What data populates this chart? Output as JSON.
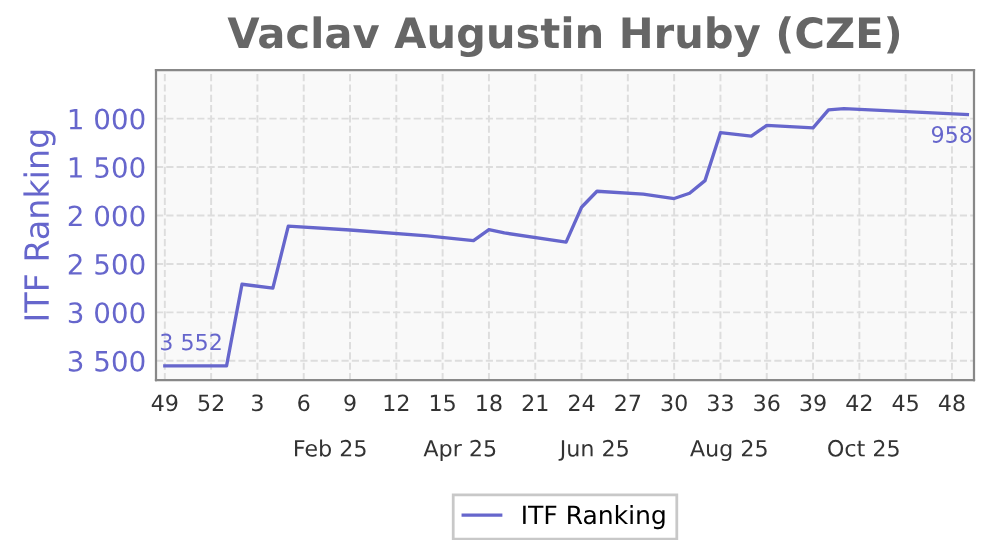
{
  "chart_data": {
    "type": "line",
    "title": "Vaclav Augustin Hruby (CZE)",
    "ylabel": "ITF Ranking",
    "x": [
      "2024-12-02",
      "2024-12-30",
      "2025-01-06",
      "2025-01-20",
      "2025-01-27",
      "2025-02-24",
      "2025-03-31",
      "2025-04-21",
      "2025-04-28",
      "2025-05-05",
      "2025-06-02",
      "2025-06-09",
      "2025-06-16",
      "2025-07-07",
      "2025-07-21",
      "2025-07-28",
      "2025-08-04",
      "2025-08-11",
      "2025-08-25",
      "2025-09-01",
      "2025-09-22",
      "2025-09-29",
      "2025-10-06",
      "2025-12-01"
    ],
    "series": [
      {
        "name": "ITF Ranking",
        "color": "#6666cc",
        "values": [
          3552,
          3552,
          2710,
          2750,
          2110,
          2150,
          2210,
          2260,
          2145,
          2180,
          2275,
          1915,
          1750,
          1780,
          1825,
          1770,
          1640,
          1145,
          1180,
          1070,
          1095,
          910,
          897,
          958
        ]
      }
    ],
    "annotations": [
      {
        "text": "3 552",
        "x": "2024-12-02",
        "y": 3552
      },
      {
        "text": "958",
        "x": "2025-12-01",
        "y": 958
      }
    ],
    "xlim": [
      "2024-11-28",
      "2025-12-04"
    ],
    "xticks": [
      {
        "value": "2024-12-02",
        "label": "49"
      },
      {
        "value": "2024-12-23",
        "label": "52"
      },
      {
        "value": "2025-01-13",
        "label": "3"
      },
      {
        "value": "2025-02-03",
        "label": "6"
      },
      {
        "value": "2025-02-24",
        "label": "9"
      },
      {
        "value": "2025-03-17",
        "label": "12"
      },
      {
        "value": "2025-04-07",
        "label": "15"
      },
      {
        "value": "2025-04-28",
        "label": "18"
      },
      {
        "value": "2025-05-19",
        "label": "21"
      },
      {
        "value": "2025-06-09",
        "label": "24"
      },
      {
        "value": "2025-06-30",
        "label": "27"
      },
      {
        "value": "2025-07-21",
        "label": "30"
      },
      {
        "value": "2025-08-11",
        "label": "33"
      },
      {
        "value": "2025-09-01",
        "label": "36"
      },
      {
        "value": "2025-09-22",
        "label": "39"
      },
      {
        "value": "2025-10-13",
        "label": "42"
      },
      {
        "value": "2025-11-03",
        "label": "45"
      },
      {
        "value": "2025-11-24",
        "label": "48"
      }
    ],
    "x2lim": [
      "2024-11-28",
      "2025-12-04"
    ],
    "x2ticks": [
      {
        "value": "2025-02-15",
        "label": "Feb 25"
      },
      {
        "value": "2025-04-15",
        "label": "Apr 25"
      },
      {
        "value": "2025-06-15",
        "label": "Jun 25"
      },
      {
        "value": "2025-08-15",
        "label": "Aug 25"
      },
      {
        "value": "2025-10-15",
        "label": "Oct 25"
      }
    ],
    "ylim": [
      3700,
      500
    ],
    "yticks": [
      {
        "value": 1000,
        "label": "1 000"
      },
      {
        "value": 1500,
        "label": "1 500"
      },
      {
        "value": 2000,
        "label": "2 000"
      },
      {
        "value": 2500,
        "label": "2 500"
      },
      {
        "value": 3000,
        "label": "3 000"
      },
      {
        "value": 3500,
        "label": "3 500"
      }
    ],
    "grid": true,
    "legend": "bottom",
    "marker": "none",
    "line_style": "solid"
  }
}
